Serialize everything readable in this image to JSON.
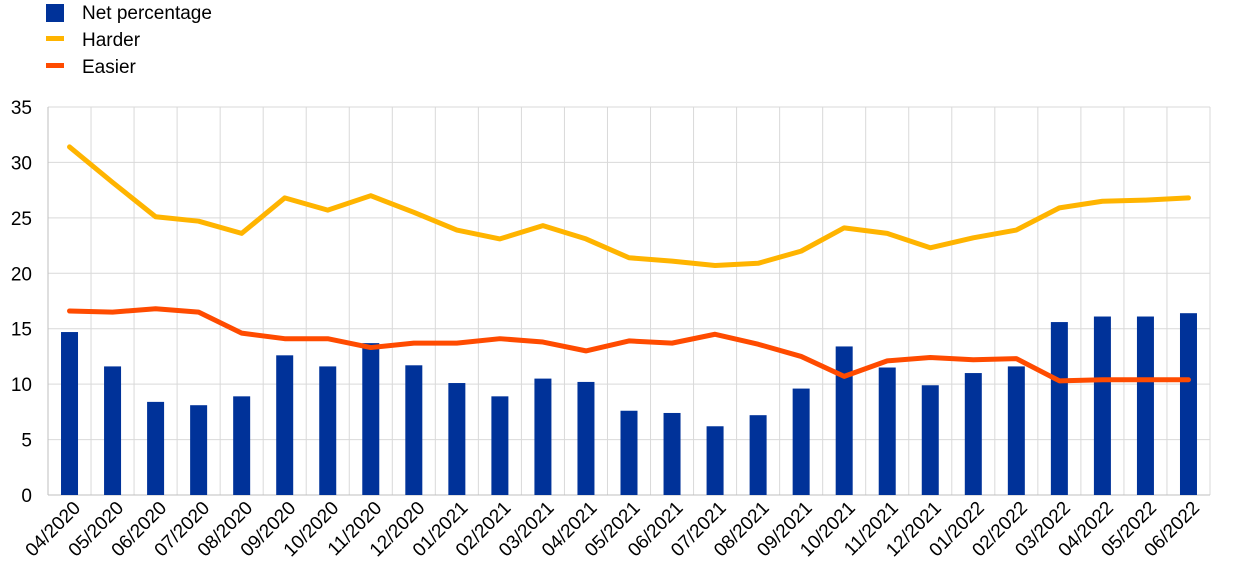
{
  "chart_data": {
    "type": "bar",
    "title": "",
    "xlabel": "",
    "ylabel": "",
    "ylim": [
      0,
      35
    ],
    "yticks": [
      0,
      5,
      10,
      15,
      20,
      25,
      30,
      35
    ],
    "grid": true,
    "legend_position": "top-left",
    "categories": [
      "04/2020",
      "05/2020",
      "06/2020",
      "07/2020",
      "08/2020",
      "09/2020",
      "10/2020",
      "11/2020",
      "12/2020",
      "01/2021",
      "02/2021",
      "03/2021",
      "04/2021",
      "05/2021",
      "06/2021",
      "07/2021",
      "08/2021",
      "09/2021",
      "10/2021",
      "11/2021",
      "12/2021",
      "01/2022",
      "02/2022",
      "03/2022",
      "04/2022",
      "05/2022",
      "06/2022"
    ],
    "series": [
      {
        "name": "Net percentage",
        "type": "bar",
        "color": "#003299",
        "values": [
          14.7,
          11.6,
          8.4,
          8.1,
          8.9,
          12.6,
          11.6,
          13.7,
          11.7,
          10.1,
          8.9,
          10.5,
          10.2,
          7.6,
          7.4,
          6.2,
          7.2,
          9.6,
          13.4,
          11.5,
          9.9,
          11.0,
          11.6,
          15.6,
          16.1,
          16.1,
          16.4
        ]
      },
      {
        "name": "Harder",
        "type": "line",
        "color": "#FFB400",
        "values": [
          31.4,
          28.2,
          25.1,
          24.7,
          23.6,
          26.8,
          25.7,
          27.0,
          25.5,
          23.9,
          23.1,
          24.3,
          23.1,
          21.4,
          21.1,
          20.7,
          20.9,
          22.0,
          24.1,
          23.6,
          22.3,
          23.2,
          23.9,
          25.9,
          26.5,
          26.6,
          26.8
        ]
      },
      {
        "name": "Easier",
        "type": "line",
        "color": "#FF4B00",
        "values": [
          16.6,
          16.5,
          16.8,
          16.5,
          14.6,
          14.1,
          14.1,
          13.3,
          13.7,
          13.7,
          14.1,
          13.8,
          13.0,
          13.9,
          13.7,
          14.5,
          13.6,
          12.5,
          10.7,
          12.1,
          12.4,
          12.2,
          12.3,
          10.3,
          10.4,
          10.4,
          10.4
        ]
      }
    ]
  }
}
